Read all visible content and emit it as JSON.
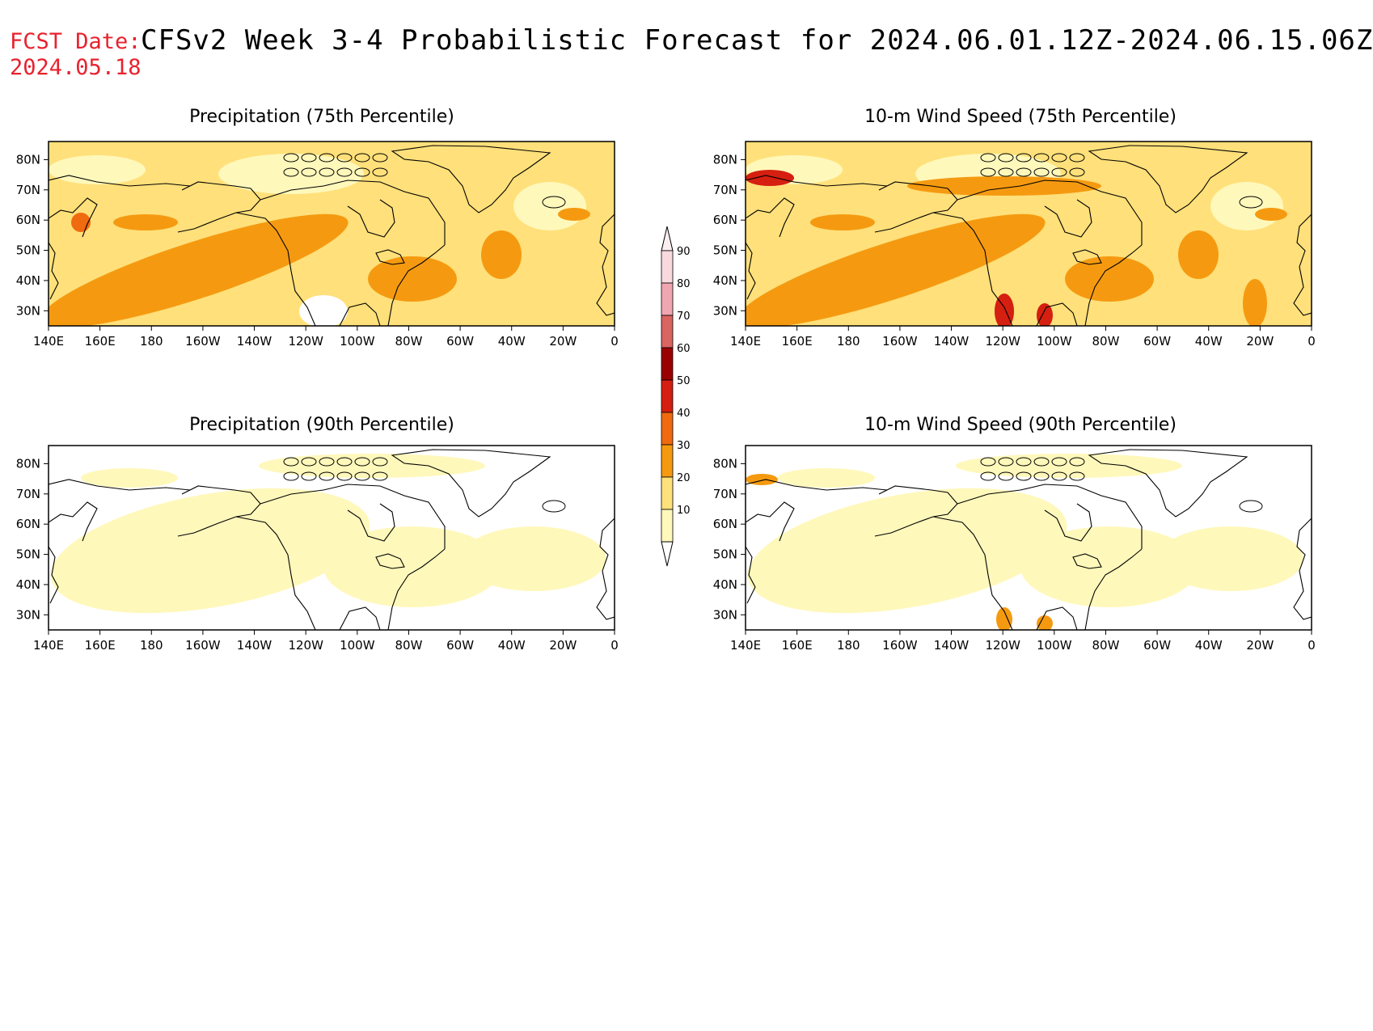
{
  "header": {
    "fcst_label": "FCST Date:",
    "fcst_date": "2024.05.18",
    "title": "CFSv2 Week 3-4 Probabilistic Forecast for 2024.06.01.12Z-2024.06.15.06Z"
  },
  "panels": [
    {
      "id": "precip-75",
      "title": "Precipitation (75th Percentile)",
      "level": "high"
    },
    {
      "id": "wind-75",
      "title": "10-m Wind Speed (75th Percentile)",
      "level": "high"
    },
    {
      "id": "precip-90",
      "title": "Precipitation (90th Percentile)",
      "level": "low"
    },
    {
      "id": "wind-90",
      "title": "10-m Wind Speed (90th Percentile)",
      "level": "low"
    }
  ],
  "axes": {
    "lon_labels": [
      "140E",
      "160E",
      "180",
      "160W",
      "140W",
      "120W",
      "100W",
      "80W",
      "60W",
      "40W",
      "20W",
      "0"
    ],
    "lat_labels": [
      "80N",
      "70N",
      "60N",
      "50N",
      "40N",
      "30N"
    ]
  },
  "colorbar": {
    "labels": [
      "90",
      "80",
      "70",
      "60",
      "50",
      "40",
      "30",
      "20",
      "10"
    ],
    "colors": [
      "#f7d9de",
      "#f0a6b0",
      "#d96460",
      "#9b0000",
      "#d51f10",
      "#f06a10",
      "#f59a10",
      "#ffe07a",
      "#fff8bb"
    ]
  }
}
